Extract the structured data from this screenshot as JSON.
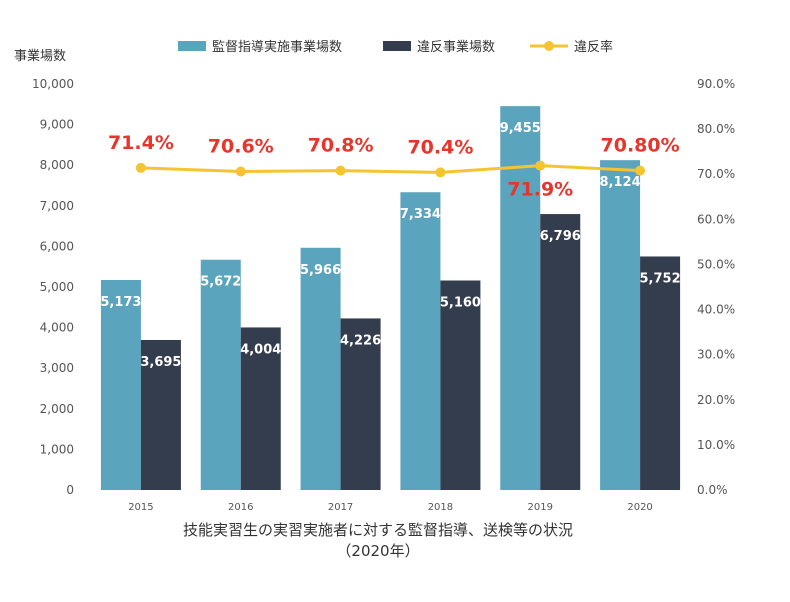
{
  "chart_data": {
    "type": "bar",
    "caption_line1": "技能実習生の実習実施者に対する監督指導、送検等の状況",
    "caption_line2": "（2020年）",
    "ylabel": "事業場数",
    "categories": [
      "2015",
      "2016",
      "2017",
      "2018",
      "2019",
      "2020"
    ],
    "series": [
      {
        "name": "監督指導実施事業場数",
        "type": "bar",
        "color": "#5BA4BD",
        "values": [
          5173,
          5672,
          5966,
          7334,
          9455,
          8124
        ],
        "labels": [
          "5,173",
          "5,672",
          "5,966",
          "7,334",
          "9,455",
          "8,124"
        ]
      },
      {
        "name": "違反事業場数",
        "type": "bar",
        "color": "#343D4E",
        "values": [
          3695,
          4004,
          4226,
          5160,
          6796,
          5752
        ],
        "labels": [
          "3,695",
          "4,004",
          "4,226",
          "5,160",
          "6,796",
          "5,752"
        ]
      },
      {
        "name": "違反率",
        "type": "line",
        "axis": "right",
        "color": "#F4C431",
        "values": [
          71.4,
          70.6,
          70.8,
          70.4,
          71.9,
          70.8
        ],
        "labels": [
          "71.4%",
          "70.6%",
          "70.8%",
          "70.4%",
          "71.9%",
          "70.80%"
        ]
      }
    ],
    "ylim": [
      0,
      10000
    ],
    "y_ticks": [
      "0",
      "1,000",
      "2,000",
      "3,000",
      "4,000",
      "5,000",
      "6,000",
      "7,000",
      "8,000",
      "9,000",
      "10,000"
    ],
    "y2lim": [
      0,
      90
    ],
    "y2_ticks": [
      "0.0%",
      "10.0%",
      "20.0%",
      "30.0%",
      "40.0%",
      "50.0%",
      "60.0%",
      "70.0%",
      "80.0%",
      "90.0%"
    ],
    "rate_label_color": "#E8352B",
    "grid": false,
    "legend_position": "top"
  }
}
